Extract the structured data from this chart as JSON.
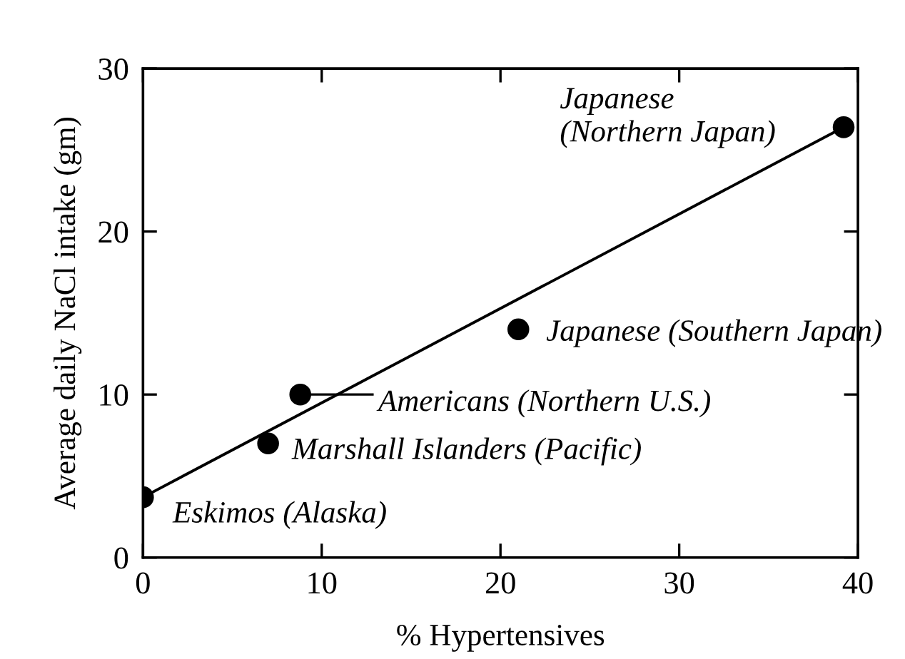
{
  "chart_data": {
    "type": "scatter",
    "xlabel": "% Hypertensives",
    "ylabel": "Average daily NaCl intake (gm)",
    "series": [
      {
        "color": "#000000",
        "x": [
          0,
          7,
          8.8,
          21,
          39.2
        ],
        "values": [
          3.7,
          7,
          10,
          14,
          26.4
        ],
        "marker": "circle"
      },
      {
        "type": "line",
        "color": "#000000",
        "x": [
          0,
          39.2
        ],
        "values": [
          3.7,
          26.4
        ],
        "line_style": "solid"
      }
    ],
    "xlim": [
      0,
      40
    ],
    "xticks": [
      0,
      10,
      20,
      30,
      40
    ],
    "ylim": [
      0,
      30
    ],
    "yticks": [
      0,
      10,
      20,
      30
    ],
    "grid": false,
    "annotations": [
      "Japanese\n(Northern Japan)",
      {
        "text": "Japanese (Southern Japan)",
        "x": 21,
        "y": 14
      },
      "Americans (Northern U.S.)",
      {
        "text": "Marshall Islanders (Pacific)",
        "x": 7,
        "y": 7
      },
      {
        "text": "Eskimos (Alaska)",
        "x": 0,
        "y": 3.7
      }
    ]
  }
}
